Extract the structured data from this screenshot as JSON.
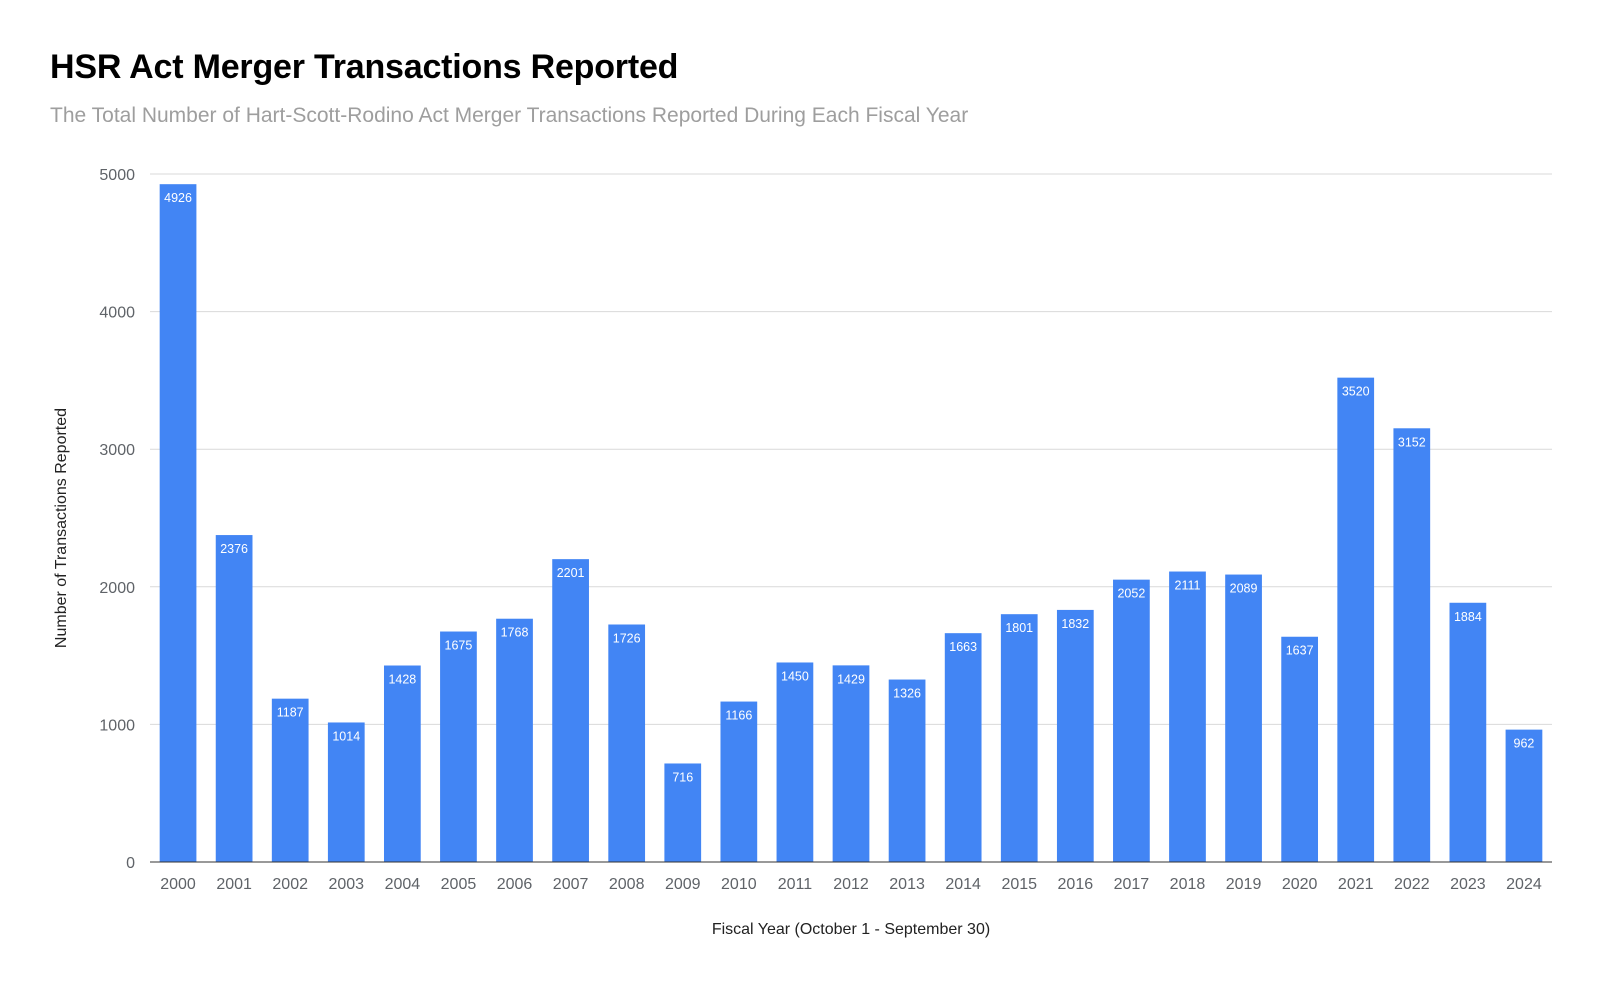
{
  "title": "HSR Act Merger Transactions Reported",
  "subtitle": "The Total Number of Hart-Scott-Rodino Act Merger Transactions Reported During Each Fiscal Year",
  "chart_data": {
    "type": "bar",
    "title": "HSR Act Merger Transactions Reported",
    "subtitle": "The Total Number of Hart-Scott-Rodino Act Merger Transactions Reported During Each Fiscal Year",
    "xlabel": "Fiscal Year (October 1 - September 30)",
    "ylabel": "Number of Transactions Reported",
    "ylim": [
      0,
      5000
    ],
    "yticks": [
      "0",
      "1000",
      "2000",
      "3000",
      "4000",
      "5000"
    ],
    "grid": true,
    "legend": "none",
    "bar_color": "#4285f4",
    "categories": [
      "2000",
      "2001",
      "2002",
      "2003",
      "2004",
      "2005",
      "2006",
      "2007",
      "2008",
      "2009",
      "2010",
      "2011",
      "2012",
      "2013",
      "2014",
      "2015",
      "2016",
      "2017",
      "2018",
      "2019",
      "2020",
      "2021",
      "2022",
      "2023",
      "2024"
    ],
    "values": [
      4926,
      2376,
      1187,
      1014,
      1428,
      1675,
      1768,
      2201,
      1726,
      716,
      1166,
      1450,
      1429,
      1326,
      1663,
      1801,
      1832,
      2052,
      2111,
      2089,
      1637,
      3520,
      3152,
      1884,
      962
    ],
    "data_labels": [
      "4926",
      "2376",
      "1187",
      "1014",
      "1428",
      "1675",
      "1768",
      "2201",
      "1726",
      "716",
      "1166",
      "1450",
      "1429",
      "1326",
      "1663",
      "1801",
      "1832",
      "2052",
      "2111",
      "2089",
      "1637",
      "3520",
      "3152",
      "1884",
      "962"
    ]
  }
}
